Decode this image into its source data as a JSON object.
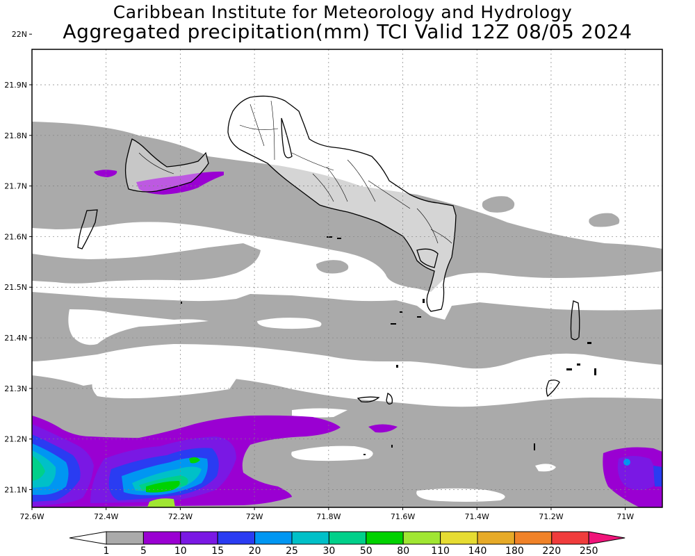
{
  "header": {
    "title_line1": "Caribbean Institute for Meteorology and Hydrology",
    "title_line2": "Aggregated precipitation(mm) TCI Valid 12Z 08/05 2024"
  },
  "axes": {
    "lon_range": [
      -72.6,
      -70.9
    ],
    "lat_range": [
      21.065,
      21.97
    ],
    "x_ticks": [
      {
        "value": -72.6,
        "label": "72.6W"
      },
      {
        "value": -72.4,
        "label": "72.4W"
      },
      {
        "value": -72.2,
        "label": "72.2W"
      },
      {
        "value": -72.0,
        "label": "72W"
      },
      {
        "value": -71.8,
        "label": "71.8W"
      },
      {
        "value": -71.6,
        "label": "71.6W"
      },
      {
        "value": -71.4,
        "label": "71.4W"
      },
      {
        "value": -71.2,
        "label": "71.2W"
      },
      {
        "value": -71.0,
        "label": "71W"
      }
    ],
    "y_ticks": [
      {
        "value": 22.0,
        "label": "22N"
      },
      {
        "value": 21.9,
        "label": "21.9N"
      },
      {
        "value": 21.8,
        "label": "21.8N"
      },
      {
        "value": 21.7,
        "label": "21.7N"
      },
      {
        "value": 21.6,
        "label": "21.6N"
      },
      {
        "value": 21.5,
        "label": "21.5N"
      },
      {
        "value": 21.4,
        "label": "21.4N"
      },
      {
        "value": 21.3,
        "label": "21.3N"
      },
      {
        "value": 21.2,
        "label": "21.2N"
      },
      {
        "value": 21.1,
        "label": "21.1N"
      }
    ],
    "grid": true
  },
  "colorbar": {
    "levels": [
      "1",
      "5",
      "10",
      "15",
      "20",
      "25",
      "30",
      "50",
      "80",
      "110",
      "140",
      "180",
      "220",
      "250"
    ],
    "colors": [
      "#aaaaaa",
      "#9a00d2",
      "#7a18e4",
      "#2a3cf2",
      "#0096f2",
      "#00c0c8",
      "#00d08a",
      "#00d200",
      "#a0e632",
      "#e6dc32",
      "#e6aa28",
      "#f08228",
      "#f03c3c",
      "#f0147a"
    ]
  }
}
